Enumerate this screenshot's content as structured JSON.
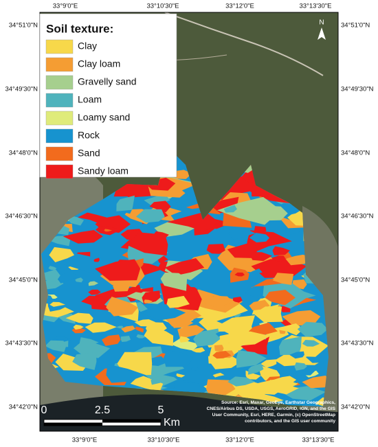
{
  "legend": {
    "title": "Soil texture:",
    "items": [
      {
        "label": "Clay",
        "color": "#f7d84a"
      },
      {
        "label": "Clay loam",
        "color": "#f59d33"
      },
      {
        "label": "Gravelly sand",
        "color": "#a6cf8e"
      },
      {
        "label": "Loam",
        "color": "#4fb3bc"
      },
      {
        "label": "Loamy sand",
        "color": "#dfeb7a"
      },
      {
        "label": "Rock",
        "color": "#1793cf"
      },
      {
        "label": "Sand",
        "color": "#f26b1d"
      },
      {
        "label": "Sandy loam",
        "color": "#ee1b1b"
      }
    ]
  },
  "graticule": {
    "top": [
      "33°9'0\"E",
      "33°10'30\"E",
      "33°12'0\"E",
      "33°13'30\"E"
    ],
    "bottom": [
      "33°9'0\"E",
      "33°10'30\"E",
      "33°12'0\"E",
      "33°13'30\"E"
    ],
    "left": [
      "34°51'0\"N",
      "34°49'30\"N",
      "34°48'0\"N",
      "34°46'30\"N",
      "34°45'0\"N",
      "34°43'30\"N",
      "34°42'0\"N"
    ],
    "right": [
      "34°51'0\"N",
      "34°49'30\"N",
      "34°48'0\"N",
      "34°46'30\"N",
      "34°45'0\"N",
      "34°43'30\"N",
      "34°42'0\"N"
    ]
  },
  "north_arrow": "N",
  "scale_bar": {
    "labels": [
      "0",
      "2.5",
      "5"
    ],
    "unit": "Km"
  },
  "source": [
    "Source: Esri, Maxar, GeoEye, Earthstar Geographics,",
    "CNES/Airbus DS, USDA, USGS, AeroGRID, IGN, and the GIS",
    "User Community, Esri, HERE, Garmin, (c) OpenStreetMap",
    "contributors, and the GIS user community"
  ]
}
